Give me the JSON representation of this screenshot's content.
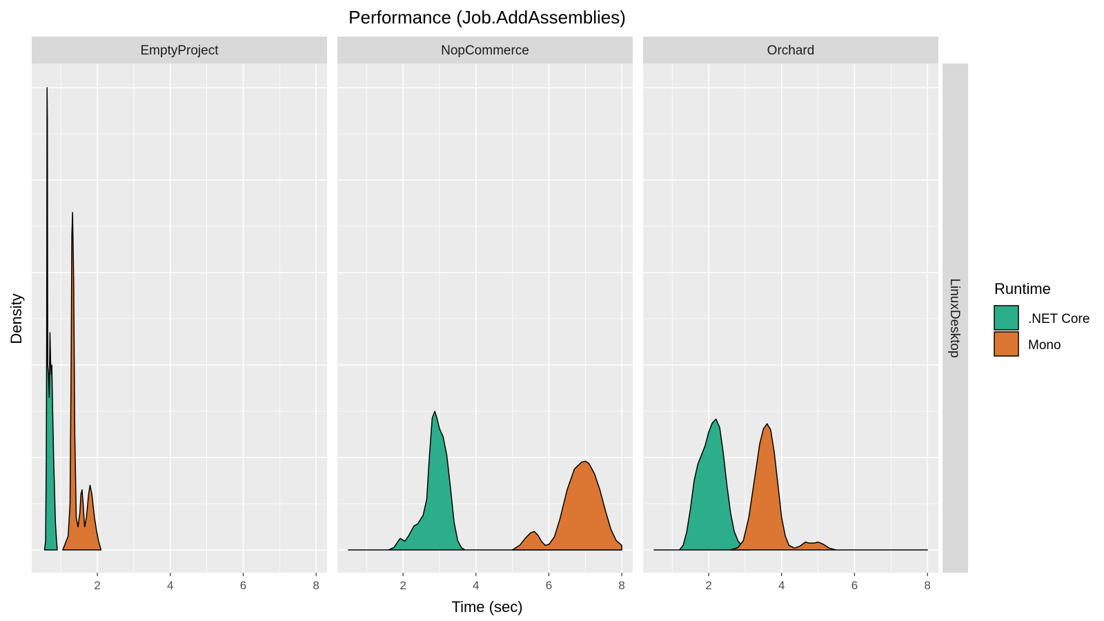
{
  "chart_data": {
    "type": "area",
    "subtype": "density",
    "title": "Performance (Job.AddAssemblies)",
    "xlabel": "Time (sec)",
    "ylabel": "Density",
    "xlim": [
      0.5,
      8.0
    ],
    "x_ticks": [
      2,
      4,
      6,
      8
    ],
    "y_scale": "relative density (no tick labels)",
    "grid": true,
    "row_facet": "LinuxDesktop",
    "legend": {
      "title": "Runtime",
      "position": "right",
      "entries": [
        {
          "name": ".NET Core",
          "color": "#2CAE8A"
        },
        {
          "name": "Mono",
          "color": "#DB7732"
        }
      ]
    },
    "panels": [
      {
        "name": "EmptyProject",
        "series": [
          {
            "name": ".NET Core",
            "points": [
              [
                0.55,
                0
              ],
              [
                0.58,
                0.02
              ],
              [
                0.6,
                0.2
              ],
              [
                0.61,
                0.5
              ],
              [
                0.615,
                0.75
              ],
              [
                0.62,
                1.0
              ],
              [
                0.63,
                0.93
              ],
              [
                0.635,
                0.55
              ],
              [
                0.64,
                0.4
              ],
              [
                0.66,
                0.38
              ],
              [
                0.68,
                0.33
              ],
              [
                0.7,
                0.47
              ],
              [
                0.72,
                0.4
              ],
              [
                0.735,
                0.38
              ],
              [
                0.75,
                0.4
              ],
              [
                0.77,
                0.32
              ],
              [
                0.8,
                0.2
              ],
              [
                0.85,
                0.06
              ],
              [
                0.88,
                0.02
              ],
              [
                0.9,
                0
              ]
            ]
          },
          {
            "name": "Mono",
            "points": [
              [
                1.05,
                0
              ],
              [
                1.1,
                0.01
              ],
              [
                1.2,
                0.03
              ],
              [
                1.25,
                0.1
              ],
              [
                1.28,
                0.4
              ],
              [
                1.3,
                0.68
              ],
              [
                1.32,
                0.73
              ],
              [
                1.35,
                0.58
              ],
              [
                1.38,
                0.25
              ],
              [
                1.42,
                0.07
              ],
              [
                1.47,
                0.05
              ],
              [
                1.52,
                0.08
              ],
              [
                1.55,
                0.12
              ],
              [
                1.58,
                0.13
              ],
              [
                1.61,
                0.1
              ],
              [
                1.65,
                0.05
              ],
              [
                1.7,
                0.07
              ],
              [
                1.76,
                0.12
              ],
              [
                1.8,
                0.14
              ],
              [
                1.85,
                0.12
              ],
              [
                1.92,
                0.07
              ],
              [
                1.98,
                0.04
              ],
              [
                2.03,
                0.02
              ],
              [
                2.1,
                0
              ]
            ]
          }
        ]
      },
      {
        "name": "NopCommerce",
        "series": [
          {
            "name": ".NET Core",
            "points": [
              [
                0.5,
                0
              ],
              [
                1.6,
                0
              ],
              [
                1.75,
                0.005
              ],
              [
                1.85,
                0.017
              ],
              [
                1.92,
                0.025
              ],
              [
                2.05,
                0.019
              ],
              [
                2.15,
                0.03
              ],
              [
                2.3,
                0.052
              ],
              [
                2.4,
                0.056
              ],
              [
                2.55,
                0.075
              ],
              [
                2.65,
                0.11
              ],
              [
                2.72,
                0.2
              ],
              [
                2.8,
                0.285
              ],
              [
                2.87,
                0.3
              ],
              [
                2.93,
                0.285
              ],
              [
                3.0,
                0.262
              ],
              [
                3.1,
                0.245
              ],
              [
                3.2,
                0.205
              ],
              [
                3.3,
                0.135
              ],
              [
                3.4,
                0.06
              ],
              [
                3.5,
                0.02
              ],
              [
                3.6,
                0.005
              ],
              [
                3.7,
                0
              ],
              [
                8.0,
                0
              ]
            ]
          },
          {
            "name": "Mono",
            "points": [
              [
                5.0,
                0
              ],
              [
                5.2,
                0.01
              ],
              [
                5.35,
                0.025
              ],
              [
                5.5,
                0.037
              ],
              [
                5.6,
                0.04
              ],
              [
                5.7,
                0.032
              ],
              [
                5.8,
                0.018
              ],
              [
                5.9,
                0.01
              ],
              [
                6.0,
                0.012
              ],
              [
                6.15,
                0.028
              ],
              [
                6.3,
                0.066
              ],
              [
                6.5,
                0.13
              ],
              [
                6.7,
                0.175
              ],
              [
                6.9,
                0.19
              ],
              [
                7.0,
                0.192
              ],
              [
                7.1,
                0.187
              ],
              [
                7.25,
                0.165
              ],
              [
                7.4,
                0.13
              ],
              [
                7.55,
                0.085
              ],
              [
                7.7,
                0.045
              ],
              [
                7.85,
                0.02
              ],
              [
                8.0,
                0.01
              ]
            ]
          }
        ]
      },
      {
        "name": "Orchard",
        "series": [
          {
            "name": ".NET Core",
            "points": [
              [
                0.5,
                0
              ],
              [
                1.2,
                0
              ],
              [
                1.3,
                0.01
              ],
              [
                1.4,
                0.04
              ],
              [
                1.5,
                0.09
              ],
              [
                1.6,
                0.15
              ],
              [
                1.7,
                0.185
              ],
              [
                1.8,
                0.205
              ],
              [
                1.9,
                0.225
              ],
              [
                2.0,
                0.255
              ],
              [
                2.1,
                0.275
              ],
              [
                2.2,
                0.283
              ],
              [
                2.3,
                0.265
              ],
              [
                2.4,
                0.21
              ],
              [
                2.5,
                0.14
              ],
              [
                2.6,
                0.08
              ],
              [
                2.7,
                0.04
              ],
              [
                2.8,
                0.02
              ],
              [
                2.9,
                0.01
              ],
              [
                3.0,
                0.004
              ],
              [
                3.1,
                0
              ]
            ]
          },
          {
            "name": "Mono",
            "points": [
              [
                2.6,
                0
              ],
              [
                2.8,
                0.005
              ],
              [
                2.95,
                0.02
              ],
              [
                3.1,
                0.07
              ],
              [
                3.25,
                0.15
              ],
              [
                3.4,
                0.23
              ],
              [
                3.5,
                0.262
              ],
              [
                3.6,
                0.273
              ],
              [
                3.7,
                0.26
              ],
              [
                3.8,
                0.21
              ],
              [
                3.9,
                0.14
              ],
              [
                4.0,
                0.07
              ],
              [
                4.1,
                0.03
              ],
              [
                4.2,
                0.01
              ],
              [
                4.35,
                0.004
              ],
              [
                4.5,
                0.008
              ],
              [
                4.65,
                0.017
              ],
              [
                4.75,
                0.015
              ],
              [
                4.9,
                0.015
              ],
              [
                5.0,
                0.017
              ],
              [
                5.15,
                0.012
              ],
              [
                5.3,
                0.004
              ],
              [
                5.5,
                0
              ],
              [
                8.0,
                0
              ]
            ]
          }
        ]
      }
    ]
  }
}
